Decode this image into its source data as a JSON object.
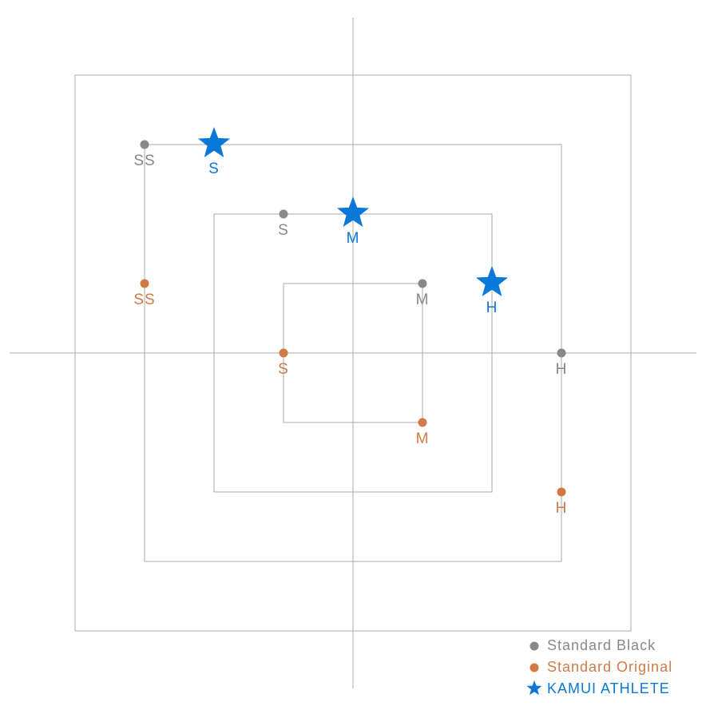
{
  "chart_data": {
    "type": "scatter",
    "xlim": [
      -5,
      5
    ],
    "ylim": [
      -5,
      5
    ],
    "series": [
      {
        "name": "Standard Black",
        "color": "#888888",
        "marker": "circle",
        "x": [
          -3,
          -1,
          1,
          3
        ],
        "y": [
          3,
          2,
          1,
          0
        ],
        "labels": [
          "SS",
          "S",
          "M",
          "H"
        ]
      },
      {
        "name": "Standard Original",
        "color": "#d17a45",
        "marker": "circle",
        "x": [
          -3,
          -1,
          1,
          3
        ],
        "y": [
          1,
          0,
          -1,
          -2
        ],
        "labels": [
          "SS",
          "S",
          "M",
          "H"
        ]
      },
      {
        "name": "KAMUI ATHLETE",
        "color": "#0a78d8",
        "marker": "star",
        "x": [
          -2,
          0,
          2
        ],
        "y": [
          3,
          2,
          1
        ],
        "labels": [
          "S",
          "M",
          "H"
        ]
      }
    ],
    "legend": "lower right"
  }
}
